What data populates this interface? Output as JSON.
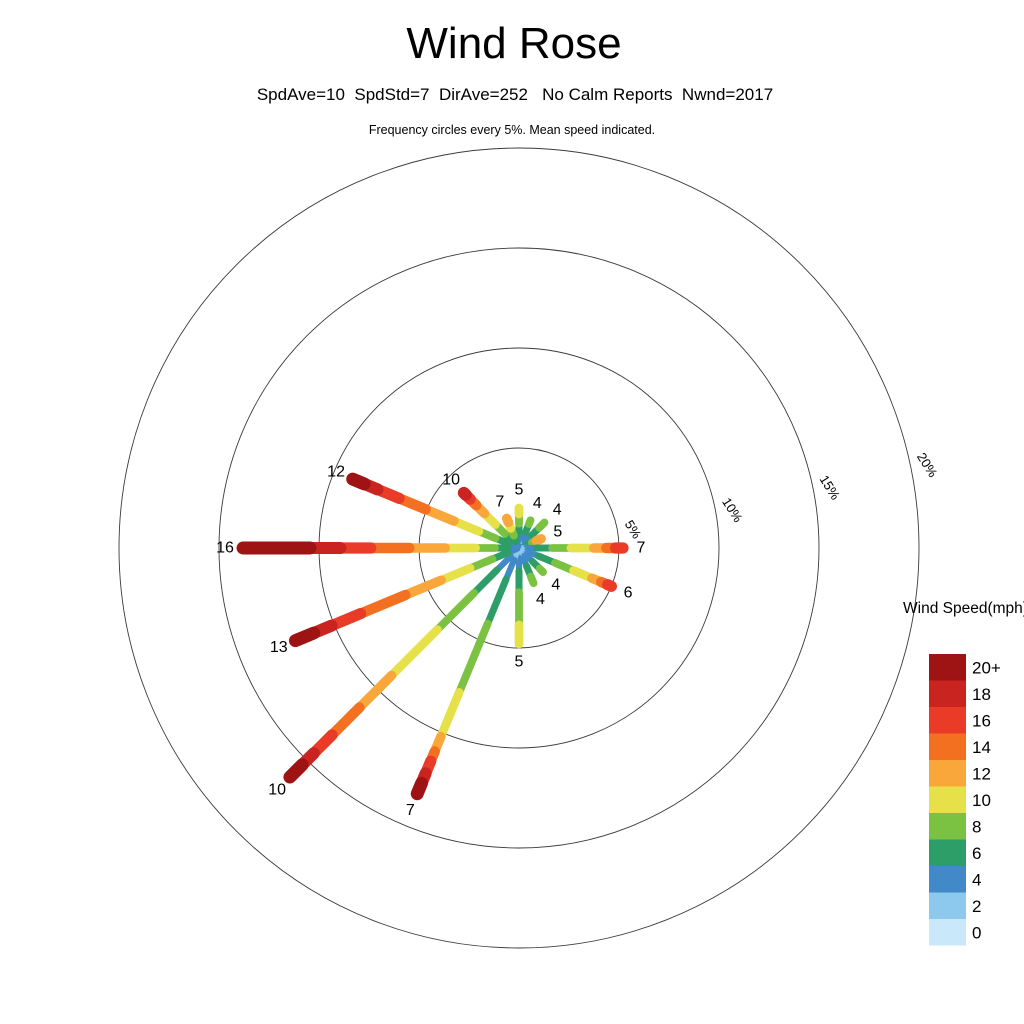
{
  "chart_data": {
    "type": "windrose",
    "title": "Wind Rose",
    "subtitle": "SpdAve=10  SpdStd=7  DirAve=252   No Calm Reports  Nwnd=2017",
    "note": "Frequency circles every 5%. Mean speed indicated.",
    "legend_title": "Wind Speed(mph)",
    "ring_step_pct": 5,
    "rings_pct": [
      5,
      10,
      15,
      20
    ],
    "ring_labels": [
      "5%",
      "10%",
      "15%",
      "20%"
    ],
    "legend": [
      {
        "speed": 20,
        "label": "20+",
        "color": "#9e1414"
      },
      {
        "speed": 18,
        "label": "18",
        "color": "#c92420"
      },
      {
        "speed": 16,
        "label": "16",
        "color": "#ea3b28"
      },
      {
        "speed": 14,
        "label": "14",
        "color": "#f2701f"
      },
      {
        "speed": 12,
        "label": "12",
        "color": "#f9a63b"
      },
      {
        "speed": 10,
        "label": "10",
        "color": "#e6e049"
      },
      {
        "speed": 8,
        "label": "8",
        "color": "#7cc242"
      },
      {
        "speed": 6,
        "label": "6",
        "color": "#2e9e68"
      },
      {
        "speed": 4,
        "label": "4",
        "color": "#4189c7"
      },
      {
        "speed": 2,
        "label": "2",
        "color": "#8cc9ec"
      },
      {
        "speed": 0,
        "label": "0",
        "color": "#c9e9fa"
      }
    ],
    "spokes": [
      {
        "dir": "N",
        "compass_deg": 0,
        "frequency_pct": 2.0,
        "mean_speed": 5,
        "segments": [
          [
            2,
            0.1
          ],
          [
            4,
            0.2
          ],
          [
            6,
            0.26
          ],
          [
            8,
            0.24
          ],
          [
            10,
            0.2
          ]
        ]
      },
      {
        "dir": "NNE",
        "compass_deg": 22.5,
        "frequency_pct": 1.5,
        "mean_speed": 4,
        "segments": [
          [
            2,
            0.2
          ],
          [
            4,
            0.3
          ],
          [
            6,
            0.3
          ],
          [
            8,
            0.2
          ]
        ]
      },
      {
        "dir": "NE",
        "compass_deg": 45,
        "frequency_pct": 1.8,
        "mean_speed": 4,
        "segments": [
          [
            2,
            0.18
          ],
          [
            4,
            0.26
          ],
          [
            6,
            0.3
          ],
          [
            8,
            0.26
          ]
        ]
      },
      {
        "dir": "ENE",
        "compass_deg": 67.5,
        "frequency_pct": 1.2,
        "mean_speed": 5,
        "segments": [
          [
            4,
            0.25
          ],
          [
            6,
            0.25
          ],
          [
            8,
            0.2
          ],
          [
            12,
            0.3
          ]
        ]
      },
      {
        "dir": "E",
        "compass_deg": 90,
        "frequency_pct": 5.2,
        "mean_speed": 7,
        "segments": [
          [
            2,
            0.05
          ],
          [
            4,
            0.1
          ],
          [
            6,
            0.15
          ],
          [
            8,
            0.18
          ],
          [
            10,
            0.22
          ],
          [
            12,
            0.12
          ],
          [
            14,
            0.09
          ],
          [
            16,
            0.09
          ]
        ]
      },
      {
        "dir": "ESE",
        "compass_deg": 112.5,
        "frequency_pct": 5.0,
        "mean_speed": 6,
        "segments": [
          [
            2,
            0.06
          ],
          [
            4,
            0.13
          ],
          [
            6,
            0.18
          ],
          [
            8,
            0.2
          ],
          [
            10,
            0.2
          ],
          [
            12,
            0.1
          ],
          [
            14,
            0.07
          ],
          [
            16,
            0.06
          ]
        ]
      },
      {
        "dir": "SE",
        "compass_deg": 135,
        "frequency_pct": 1.7,
        "mean_speed": 4,
        "segments": [
          [
            2,
            0.2
          ],
          [
            4,
            0.3
          ],
          [
            6,
            0.3
          ],
          [
            8,
            0.2
          ]
        ]
      },
      {
        "dir": "SSE",
        "compass_deg": 157.5,
        "frequency_pct": 1.9,
        "mean_speed": 4,
        "segments": [
          [
            2,
            0.18
          ],
          [
            4,
            0.28
          ],
          [
            6,
            0.3
          ],
          [
            8,
            0.24
          ]
        ]
      },
      {
        "dir": "S",
        "compass_deg": 180,
        "frequency_pct": 4.8,
        "mean_speed": 5,
        "segments": [
          [
            2,
            0.08
          ],
          [
            4,
            0.14
          ],
          [
            6,
            0.22
          ],
          [
            8,
            0.34
          ],
          [
            10,
            0.22
          ]
        ]
      },
      {
        "dir": "SSW",
        "compass_deg": 202.5,
        "frequency_pct": 13.3,
        "mean_speed": 7,
        "segments": [
          [
            2,
            0.04
          ],
          [
            4,
            0.08
          ],
          [
            6,
            0.18
          ],
          [
            8,
            0.28
          ],
          [
            10,
            0.18
          ],
          [
            12,
            0.06
          ],
          [
            14,
            0.04
          ],
          [
            16,
            0.05
          ],
          [
            18,
            0.04
          ],
          [
            20,
            0.05
          ]
        ]
      },
      {
        "dir": "SW",
        "compass_deg": 225,
        "frequency_pct": 16.2,
        "mean_speed": 10,
        "segments": [
          [
            2,
            0.03
          ],
          [
            4,
            0.06
          ],
          [
            6,
            0.1
          ],
          [
            8,
            0.16
          ],
          [
            10,
            0.2
          ],
          [
            12,
            0.14
          ],
          [
            14,
            0.12
          ],
          [
            16,
            0.08
          ],
          [
            18,
            0.05
          ],
          [
            20,
            0.06
          ]
        ]
      },
      {
        "dir": "WSW",
        "compass_deg": 247.5,
        "frequency_pct": 12.1,
        "mean_speed": 13,
        "segments": [
          [
            4,
            0.04
          ],
          [
            6,
            0.07
          ],
          [
            8,
            0.1
          ],
          [
            10,
            0.13
          ],
          [
            12,
            0.16
          ],
          [
            14,
            0.2
          ],
          [
            16,
            0.13
          ],
          [
            18,
            0.08
          ],
          [
            20,
            0.09
          ]
        ]
      },
      {
        "dir": "W",
        "compass_deg": 270,
        "frequency_pct": 13.8,
        "mean_speed": 16,
        "segments": [
          [
            4,
            0.03
          ],
          [
            6,
            0.05
          ],
          [
            8,
            0.07
          ],
          [
            10,
            0.11
          ],
          [
            12,
            0.13
          ],
          [
            14,
            0.14
          ],
          [
            16,
            0.11
          ],
          [
            18,
            0.11
          ],
          [
            20,
            0.25
          ]
        ]
      },
      {
        "dir": "WNW",
        "compass_deg": 292.5,
        "frequency_pct": 9.0,
        "mean_speed": 12,
        "segments": [
          [
            4,
            0.05
          ],
          [
            6,
            0.08
          ],
          [
            8,
            0.1
          ],
          [
            10,
            0.15
          ],
          [
            12,
            0.17
          ],
          [
            14,
            0.16
          ],
          [
            16,
            0.13
          ],
          [
            18,
            0.08
          ],
          [
            20,
            0.08
          ]
        ]
      },
      {
        "dir": "NW",
        "compass_deg": 315,
        "frequency_pct": 3.9,
        "mean_speed": 10,
        "segments": [
          [
            4,
            0.1
          ],
          [
            6,
            0.13
          ],
          [
            8,
            0.17
          ],
          [
            10,
            0.2
          ],
          [
            12,
            0.15
          ],
          [
            14,
            0.11
          ],
          [
            16,
            0.08
          ],
          [
            18,
            0.06
          ]
        ]
      },
      {
        "dir": "NNW",
        "compass_deg": 337.5,
        "frequency_pct": 1.6,
        "mean_speed": 7,
        "segments": [
          [
            4,
            0.16
          ],
          [
            6,
            0.2
          ],
          [
            8,
            0.24
          ],
          [
            10,
            0.2
          ],
          [
            12,
            0.2
          ]
        ]
      }
    ]
  }
}
